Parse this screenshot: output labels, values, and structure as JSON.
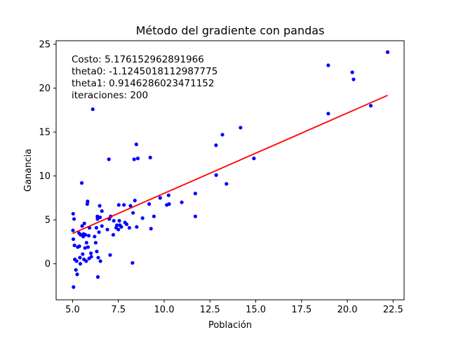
{
  "chart_data": {
    "type": "scatter",
    "title": "Método del gradiente con pandas",
    "xlabel": "Población",
    "ylabel": "Ganancia",
    "xlim": [
      4.1,
      23.1
    ],
    "ylim": [
      -4.1,
      25.4
    ],
    "xticks": [
      5.0,
      7.5,
      10.0,
      12.5,
      15.0,
      17.5,
      20.0,
      22.5
    ],
    "xtick_labels": [
      "5.0",
      "7.5",
      "10.0",
      "12.5",
      "15.0",
      "17.5",
      "20.0",
      "22.5"
    ],
    "yticks": [
      0,
      5,
      10,
      15,
      20,
      25
    ],
    "ytick_labels": [
      "0",
      "5",
      "10",
      "15",
      "20",
      "25"
    ],
    "grid": false,
    "annotation_lines": [
      "Costo: 5.176152962891966",
      "theta0: -1.1245018112987775",
      "theta1: 0.9146286023471152",
      "iteraciones: 200"
    ],
    "series": [
      {
        "kind": "scatter",
        "color": "#0000ff",
        "points": [
          [
            5.05,
            -2.65
          ],
          [
            5.02,
            3.8
          ],
          [
            5.03,
            5.7
          ],
          [
            5.04,
            2.8
          ],
          [
            5.08,
            5.1
          ],
          [
            5.1,
            2.1
          ],
          [
            5.12,
            0.5
          ],
          [
            5.18,
            -0.7
          ],
          [
            5.22,
            0.3
          ],
          [
            5.25,
            -1.2
          ],
          [
            5.28,
            1.9
          ],
          [
            5.35,
            3.5
          ],
          [
            5.37,
            2.0
          ],
          [
            5.4,
            0.7
          ],
          [
            5.42,
            0.0
          ],
          [
            5.44,
            3.3
          ],
          [
            5.5,
            9.2
          ],
          [
            5.52,
            4.3
          ],
          [
            5.55,
            1.1
          ],
          [
            5.58,
            3.1
          ],
          [
            5.6,
            3.4
          ],
          [
            5.62,
            0.5
          ],
          [
            5.64,
            4.6
          ],
          [
            5.68,
            1.8
          ],
          [
            5.7,
            3.3
          ],
          [
            5.74,
            0.3
          ],
          [
            5.76,
            2.4
          ],
          [
            5.8,
            6.8
          ],
          [
            5.82,
            7.1
          ],
          [
            5.84,
            1.9
          ],
          [
            5.88,
            3.2
          ],
          [
            5.9,
            0.6
          ],
          [
            5.92,
            4.1
          ],
          [
            6.0,
            1.2
          ],
          [
            6.02,
            0.8
          ],
          [
            6.1,
            17.6
          ],
          [
            6.2,
            3.1
          ],
          [
            6.26,
            2.4
          ],
          [
            6.3,
            4.1
          ],
          [
            6.32,
            1.4
          ],
          [
            6.35,
            5.4
          ],
          [
            6.36,
            5.1
          ],
          [
            6.38,
            -1.5
          ],
          [
            6.4,
            0.7
          ],
          [
            6.44,
            3.6
          ],
          [
            6.48,
            6.6
          ],
          [
            6.5,
            5.3
          ],
          [
            6.52,
            0.3
          ],
          [
            6.6,
            6.0
          ],
          [
            6.6,
            4.3
          ],
          [
            6.9,
            3.9
          ],
          [
            6.98,
            11.9
          ],
          [
            7.0,
            5.1
          ],
          [
            7.05,
            1.0
          ],
          [
            7.08,
            5.4
          ],
          [
            7.22,
            3.3
          ],
          [
            7.25,
            4.9
          ],
          [
            7.38,
            4.1
          ],
          [
            7.42,
            4.4
          ],
          [
            7.5,
            3.9
          ],
          [
            7.52,
            6.7
          ],
          [
            7.55,
            4.9
          ],
          [
            7.58,
            4.4
          ],
          [
            7.66,
            4.2
          ],
          [
            7.8,
            6.7
          ],
          [
            7.86,
            4.7
          ],
          [
            7.95,
            4.5
          ],
          [
            8.1,
            4.1
          ],
          [
            8.16,
            6.6
          ],
          [
            8.27,
            0.1
          ],
          [
            8.3,
            5.8
          ],
          [
            8.36,
            11.9
          ],
          [
            8.4,
            7.2
          ],
          [
            8.48,
            13.6
          ],
          [
            8.5,
            4.2
          ],
          [
            8.56,
            12.0
          ],
          [
            8.82,
            5.2
          ],
          [
            9.18,
            6.8
          ],
          [
            9.24,
            12.1
          ],
          [
            9.28,
            4.0
          ],
          [
            9.44,
            5.4
          ],
          [
            9.78,
            7.5
          ],
          [
            10.14,
            6.7
          ],
          [
            10.24,
            7.8
          ],
          [
            10.27,
            6.8
          ],
          [
            10.96,
            7.0
          ],
          [
            11.7,
            8.0
          ],
          [
            11.7,
            5.4
          ],
          [
            12.83,
            13.5
          ],
          [
            12.84,
            10.1
          ],
          [
            13.18,
            14.7
          ],
          [
            13.4,
            9.1
          ],
          [
            14.17,
            15.5
          ],
          [
            14.9,
            12.0
          ],
          [
            18.96,
            17.1
          ],
          [
            18.96,
            22.6
          ],
          [
            20.27,
            21.8
          ],
          [
            20.34,
            21.0
          ],
          [
            21.28,
            18.0
          ],
          [
            22.2,
            24.1
          ]
        ]
      },
      {
        "kind": "line",
        "color": "#ff0000",
        "x": [
          5.0,
          22.2
        ],
        "y": [
          3.45,
          19.18
        ]
      }
    ]
  }
}
